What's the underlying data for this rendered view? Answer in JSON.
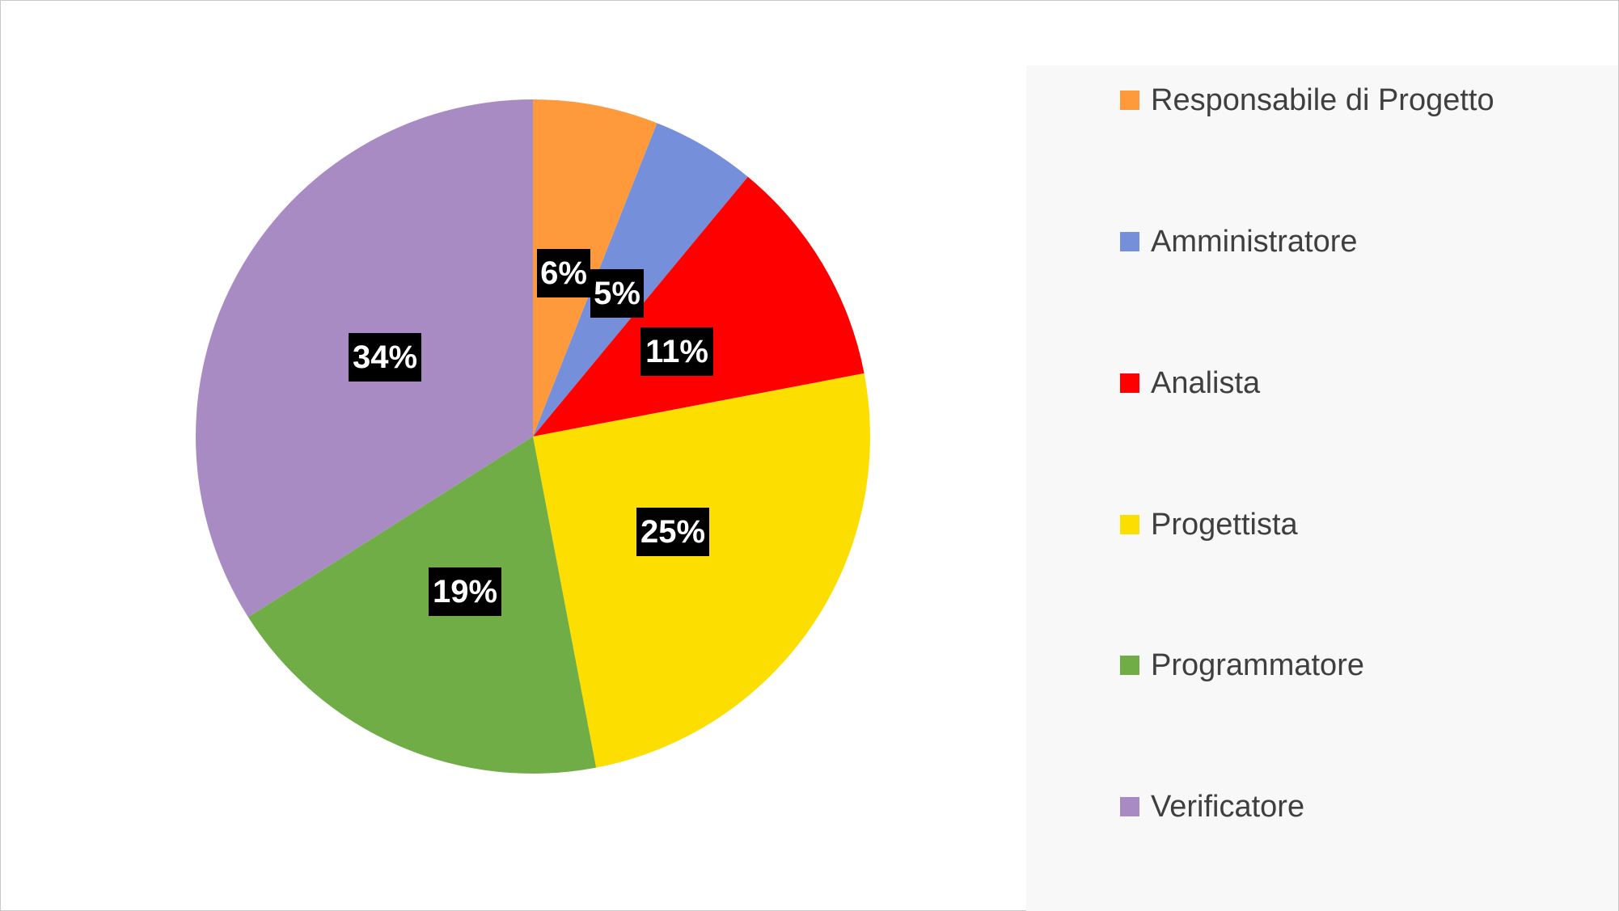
{
  "chart_data": {
    "type": "pie",
    "title": "",
    "categories": [
      "Responsabile di Progetto",
      "Amministratore",
      "Analista",
      "Progettista",
      "Programmatore",
      "Verificatore"
    ],
    "values": [
      6,
      5,
      11,
      25,
      19,
      34
    ],
    "data_labels": [
      "6%",
      "5%",
      "11%",
      "25%",
      "19%",
      "34%"
    ],
    "colors": [
      "#FF9A3C",
      "#758FDB",
      "#FF0000",
      "#FCDF00",
      "#71AD47",
      "#A98BC3"
    ],
    "legend_position": "right"
  },
  "legend": {
    "items": [
      {
        "label": "Responsabile di Progetto",
        "color": "#FF9A3C"
      },
      {
        "label": "Amministratore",
        "color": "#758FDB"
      },
      {
        "label": "Analista",
        "color": "#FF0000"
      },
      {
        "label": "Progettista",
        "color": "#FCDF00"
      },
      {
        "label": "Programmatore",
        "color": "#71AD47"
      },
      {
        "label": "Verificatore",
        "color": "#A98BC3"
      }
    ]
  }
}
